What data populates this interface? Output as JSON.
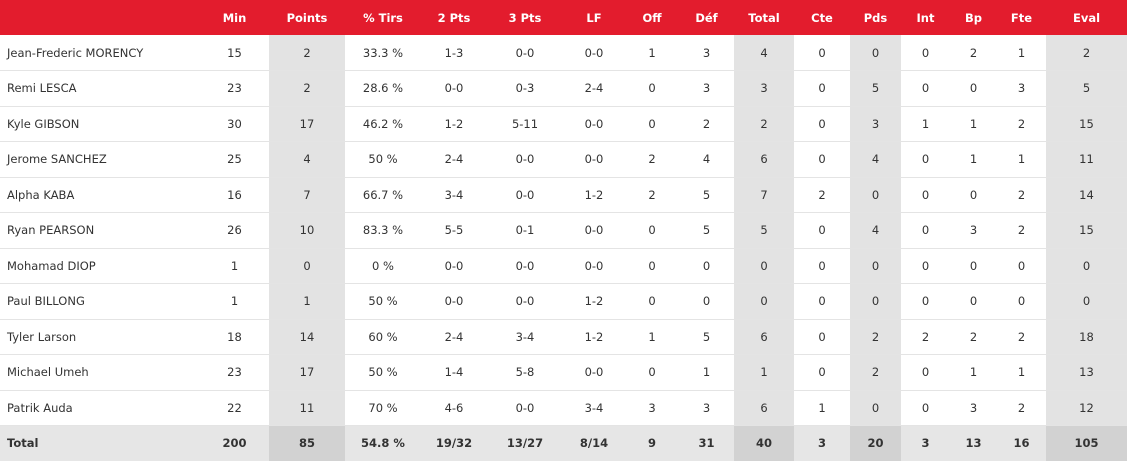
{
  "colors": {
    "header_bg": "#e31c2d",
    "highlight_col": "#e3e3e3",
    "total_bg": "#e6e6e6"
  },
  "columns": [
    "",
    "Min",
    "Points",
    "% Tirs",
    "2 Pts",
    "3 Pts",
    "LF",
    "Off",
    "Déf",
    "Total",
    "Cte",
    "Pds",
    "Int",
    "Bp",
    "Fte",
    "Eval"
  ],
  "rows": [
    [
      "Jean-Frederic MORENCY",
      "15",
      "2",
      "33.3 %",
      "1-3",
      "0-0",
      "0-0",
      "1",
      "3",
      "4",
      "0",
      "0",
      "0",
      "2",
      "1",
      "2"
    ],
    [
      "Remi LESCA",
      "23",
      "2",
      "28.6 %",
      "0-0",
      "0-3",
      "2-4",
      "0",
      "3",
      "3",
      "0",
      "5",
      "0",
      "0",
      "3",
      "5"
    ],
    [
      "Kyle GIBSON",
      "30",
      "17",
      "46.2 %",
      "1-2",
      "5-11",
      "0-0",
      "0",
      "2",
      "2",
      "0",
      "3",
      "1",
      "1",
      "2",
      "15"
    ],
    [
      "Jerome SANCHEZ",
      "25",
      "4",
      "50 %",
      "2-4",
      "0-0",
      "0-0",
      "2",
      "4",
      "6",
      "0",
      "4",
      "0",
      "1",
      "1",
      "11"
    ],
    [
      "Alpha KABA",
      "16",
      "7",
      "66.7 %",
      "3-4",
      "0-0",
      "1-2",
      "2",
      "5",
      "7",
      "2",
      "0",
      "0",
      "0",
      "2",
      "14"
    ],
    [
      "Ryan PEARSON",
      "26",
      "10",
      "83.3 %",
      "5-5",
      "0-1",
      "0-0",
      "0",
      "5",
      "5",
      "0",
      "4",
      "0",
      "3",
      "2",
      "15"
    ],
    [
      "Mohamad DIOP",
      "1",
      "0",
      "0 %",
      "0-0",
      "0-0",
      "0-0",
      "0",
      "0",
      "0",
      "0",
      "0",
      "0",
      "0",
      "0",
      "0"
    ],
    [
      "Paul BILLONG",
      "1",
      "1",
      "50 %",
      "0-0",
      "0-0",
      "1-2",
      "0",
      "0",
      "0",
      "0",
      "0",
      "0",
      "0",
      "0",
      "0"
    ],
    [
      "Tyler Larson",
      "18",
      "14",
      "60 %",
      "2-4",
      "3-4",
      "1-2",
      "1",
      "5",
      "6",
      "0",
      "2",
      "2",
      "2",
      "2",
      "18"
    ],
    [
      "Michael Umeh",
      "23",
      "17",
      "50 %",
      "1-4",
      "5-8",
      "0-0",
      "0",
      "1",
      "1",
      "0",
      "2",
      "0",
      "1",
      "1",
      "13"
    ],
    [
      "Patrik Auda",
      "22",
      "11",
      "70 %",
      "4-6",
      "0-0",
      "3-4",
      "3",
      "3",
      "6",
      "1",
      "0",
      "0",
      "3",
      "2",
      "12"
    ]
  ],
  "totals": [
    "Total",
    "200",
    "85",
    "54.8 %",
    "19/32",
    "13/27",
    "8/14",
    "9",
    "31",
    "40",
    "3",
    "20",
    "3",
    "13",
    "16",
    "105"
  ]
}
